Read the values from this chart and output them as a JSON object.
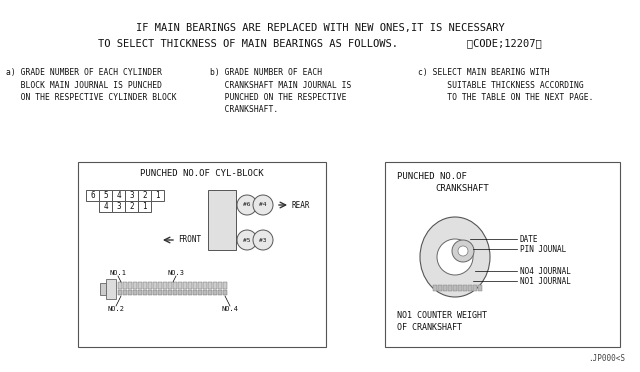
{
  "bg_color": "#ffffff",
  "title_line1": "IF MAIN BEARINGS ARE REPLACED WITH NEW ONES,IT IS NECESSARY",
  "title_line2": "TO SELECT THICKNESS OF MAIN BEARINGS AS FOLLOWS.           〈CODE;12207〉",
  "label_a": "a) GRADE NUMBER OF EACH CYLINDER\n   BLOCK MAIN JOURNAL IS PUNCHED\n   ON THE RESPECTIVE CYLINDER BLOCK",
  "label_b": "b) GRADE NUMBER OF EACH\n   CRANKSHAFT MAIN JOURNAL IS\n   PUNCHED ON THE RESPECTIVE\n   CRANKSHAFT.",
  "label_c": "c) SELECT MAIN BEARING WITH\n      SUITABLE THICKNESS ACCORDING\n      TO THE TABLE ON THE NEXT PAGE.",
  "box1_title": "PUNCHED NO.OF CYL-BLOCK",
  "box2_title_l1": "PUNCHED NO.OF",
  "box2_title_l2": "CRANKSHAFT",
  "footnote": ".JP000<S"
}
